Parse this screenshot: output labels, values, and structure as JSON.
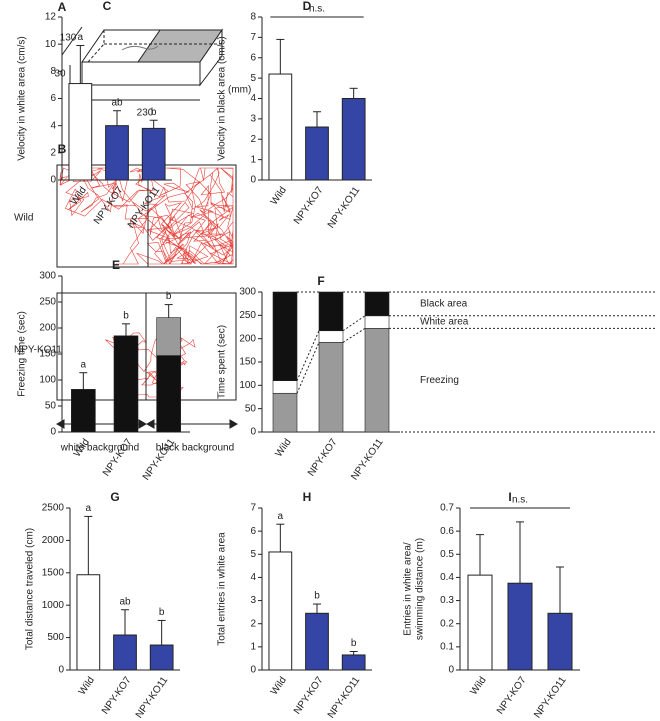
{
  "panel_a": {
    "label": "A",
    "depth": "130",
    "height": "30",
    "length": "230",
    "unit": "(mm)"
  },
  "panel_b": {
    "label": "B",
    "rows": [
      "Wild",
      "NPY-KO11"
    ],
    "backgrounds": [
      "white background",
      "black background"
    ]
  },
  "chart_data": [
    {
      "type": "bar",
      "panel": "C",
      "ylabel": [
        "Velocity in white area (cm/s)"
      ],
      "categories": [
        "Wild",
        "NPY-KO7",
        "NPY-KO11"
      ],
      "values": [
        7.1,
        4.0,
        3.8
      ],
      "errors": [
        2.8,
        1.1,
        0.6
      ],
      "colors": [
        "#ffffff",
        "#3545a6",
        "#3545a6"
      ],
      "letters": [
        "a",
        "ab",
        "b"
      ],
      "ylim": [
        0,
        12
      ],
      "yticks": [
        0,
        2,
        4,
        6,
        8,
        10,
        12
      ]
    },
    {
      "type": "bar",
      "panel": "D",
      "ylabel": [
        "Velocity in black area (cm/s)"
      ],
      "categories": [
        "Wild",
        "NPY-KO7",
        "NPY-KO11"
      ],
      "values": [
        5.2,
        2.6,
        4.0
      ],
      "errors": [
        1.7,
        0.75,
        0.5
      ],
      "colors": [
        "#ffffff",
        "#3545a6",
        "#3545a6"
      ],
      "annotation": "n.s.",
      "ylim": [
        0,
        8
      ],
      "yticks": [
        0,
        1,
        2,
        3,
        4,
        5,
        6,
        7,
        8
      ]
    },
    {
      "type": "stacked_bar",
      "panel": "E",
      "ylabel": [
        "Freezing time (sec)"
      ],
      "categories": [
        "Wild",
        "NPY-KO7",
        "NPY-KO11"
      ],
      "series": [
        {
          "color": "#111111",
          "values": [
            82,
            185,
            147
          ]
        },
        {
          "color": "#9a9a9a",
          "values": [
            0,
            0,
            73
          ]
        }
      ],
      "errors": [
        32,
        23,
        25
      ],
      "letters": [
        "a",
        "b",
        "b"
      ],
      "ylim": [
        0,
        300
      ],
      "yticks": [
        0,
        50,
        100,
        150,
        200,
        250,
        300
      ]
    },
    {
      "type": "stacked_bar",
      "panel": "F",
      "ylabel": [
        "Time spent (sec)"
      ],
      "categories": [
        "Wild",
        "NPY-KO7",
        "NPY-KO11"
      ],
      "series": [
        {
          "name": "Freezing",
          "color": "#9a9a9a",
          "values": [
            83,
            192,
            222
          ]
        },
        {
          "name": "White area",
          "color": "#ffffff",
          "values": [
            27,
            25,
            27
          ]
        },
        {
          "name": "Black area",
          "color": "#111111",
          "values": [
            190,
            83,
            51
          ]
        }
      ],
      "legend": "right",
      "ylim": [
        0,
        300
      ],
      "yticks": [
        0,
        50,
        100,
        150,
        200,
        250,
        300
      ]
    },
    {
      "type": "bar",
      "panel": "G",
      "ylabel": [
        "Total distance traveled (cm)"
      ],
      "categories": [
        "Wild",
        "NPY-KO7",
        "NPY-KO11"
      ],
      "values": [
        1470,
        540,
        385
      ],
      "errors": [
        900,
        390,
        380
      ],
      "colors": [
        "#ffffff",
        "#3545a6",
        "#3545a6"
      ],
      "letters": [
        "a",
        "ab",
        "b"
      ],
      "ylim": [
        0,
        2500
      ],
      "yticks": [
        0,
        500,
        1000,
        1500,
        2000,
        2500
      ]
    },
    {
      "type": "bar",
      "panel": "H",
      "ylabel": [
        "Total entries in white area"
      ],
      "categories": [
        "Wild",
        "NPY-KO7",
        "NPY-KO11"
      ],
      "values": [
        5.1,
        2.45,
        0.65
      ],
      "errors": [
        1.2,
        0.4,
        0.15
      ],
      "colors": [
        "#ffffff",
        "#3545a6",
        "#3545a6"
      ],
      "letters": [
        "a",
        "b",
        "b"
      ],
      "ylim": [
        0,
        7
      ],
      "yticks": [
        0,
        1,
        2,
        3,
        4,
        5,
        6,
        7
      ]
    },
    {
      "type": "bar",
      "panel": "I",
      "ylabel": [
        "Entries in white area/",
        "swimming distance (m)"
      ],
      "categories": [
        "Wild",
        "NPY-KO7",
        "NPY-KO11"
      ],
      "values": [
        0.41,
        0.375,
        0.245
      ],
      "errors": [
        0.175,
        0.265,
        0.2
      ],
      "colors": [
        "#ffffff",
        "#3545a6",
        "#3545a6"
      ],
      "annotation": "n.s.",
      "ylim": [
        0,
        0.7
      ],
      "yticks": [
        0,
        0.1,
        0.2,
        0.3,
        0.4,
        0.5,
        0.6,
        0.7
      ]
    }
  ]
}
